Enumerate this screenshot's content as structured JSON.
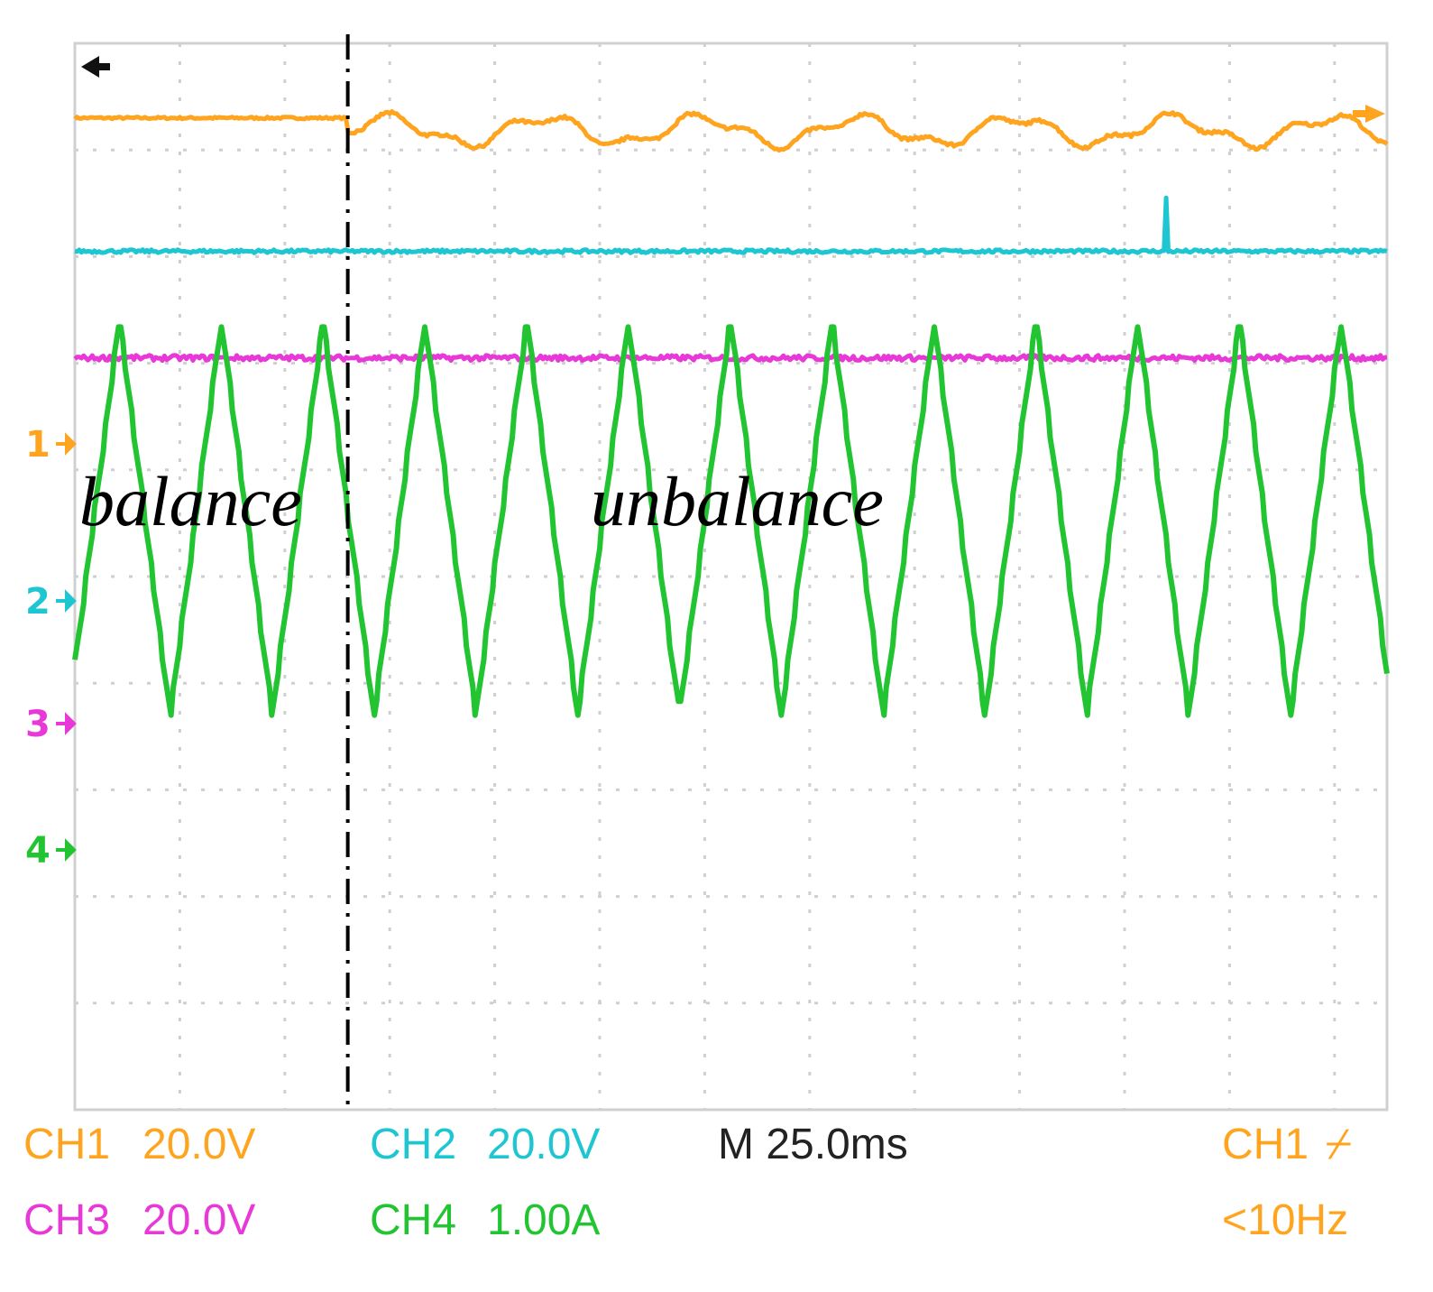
{
  "chart_data": {
    "type": "line",
    "annotations": [
      "balance",
      "unbalance"
    ],
    "event_divider_time_div": 2.6,
    "time_per_div": "25.0ms",
    "x_divisions": 12.5,
    "y_divisions": 10,
    "grid": true,
    "channels": [
      {
        "id": "CH1",
        "marker": "1",
        "scale": "20.0V",
        "color": "#FFA41F",
        "offset_div": 4.3,
        "trace": "flat_then_ripple"
      },
      {
        "id": "CH2",
        "marker": "2",
        "scale": "20.0V",
        "color": "#1EC6D2",
        "offset_div": 3.05,
        "trace": "flat_with_spike",
        "spike_time_div": 10.4
      },
      {
        "id": "CH3",
        "marker": "3",
        "scale": "20.0V",
        "color": "#E838D8",
        "offset_div": 2.05,
        "trace": "flat_noise"
      },
      {
        "id": "CH4",
        "marker": "4",
        "scale": "1.00A",
        "color": "#22C432",
        "trace": "triangular_wave",
        "period_div": 0.97,
        "max_div": 2.4,
        "min_div": -1.3
      }
    ],
    "trigger": {
      "source": "CH1",
      "slope": "rising",
      "frequency": "<10Hz"
    }
  },
  "status": {
    "ch1_label": "CH1",
    "ch1_scale": "20.0V",
    "ch2_label": "CH2",
    "ch2_scale": "20.0V",
    "ch3_label": "CH3",
    "ch3_scale": "20.0V",
    "ch4_label": "CH4",
    "ch4_scale": "1.00A",
    "timebase": "M 25.0ms",
    "trigger_source": "CH1",
    "trigger_slope_symbol": "⌿",
    "trigger_freq": "<10Hz"
  },
  "markers": {
    "ch1": "1",
    "ch2": "2",
    "ch3": "3",
    "ch4": "4"
  },
  "colors": {
    "ch1": "#FFA41F",
    "ch2": "#1EC6D2",
    "ch3": "#E838D8",
    "ch4": "#22C432"
  }
}
